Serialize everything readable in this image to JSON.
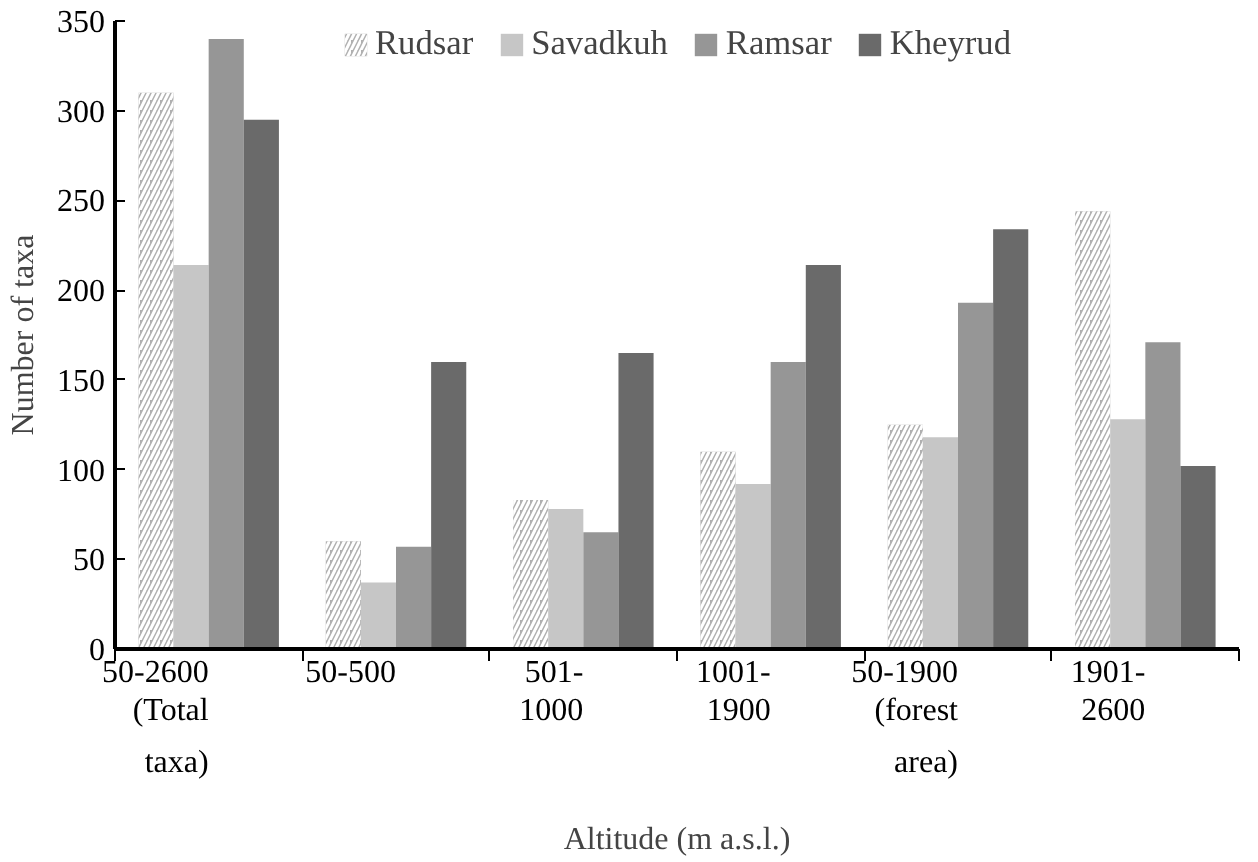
{
  "chart_data": {
    "type": "bar",
    "xlabel": "Altitude (m a.s.l.)",
    "ylabel": "Number of taxa",
    "categories": [
      "50-2600\n(Total\ntaxa)",
      "50-500",
      "501-\n1000",
      "1001-\n1900",
      "50-1900\n(forest\narea)",
      "1901-\n2600"
    ],
    "series": [
      {
        "name": "Rudsar",
        "color": "#b0b0b0",
        "values": [
          310,
          60,
          83,
          110,
          125,
          244
        ]
      },
      {
        "name": "Savadkuh",
        "color": "#c6c6c6",
        "values": [
          214,
          37,
          78,
          92,
          118,
          128
        ]
      },
      {
        "name": "Ramsar",
        "color": "#969696",
        "values": [
          340,
          57,
          65,
          160,
          193,
          171
        ]
      },
      {
        "name": "Kheyrud",
        "color": "#6a6a6a",
        "values": [
          295,
          160,
          165,
          214,
          234,
          102
        ]
      }
    ],
    "ylim": [
      0,
      350
    ],
    "yticks": [
      0,
      50,
      100,
      150,
      200,
      250,
      300,
      350
    ],
    "grid": false,
    "legend": "top"
  }
}
